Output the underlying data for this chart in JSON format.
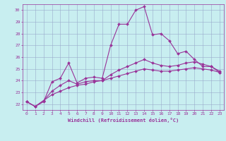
{
  "xlabel": "Windchill (Refroidissement éolien,°C)",
  "background_color": "#c8eef0",
  "line_color": "#993399",
  "grid_color": "#99aacc",
  "xlim": [
    -0.5,
    23.5
  ],
  "ylim": [
    21.5,
    30.5
  ],
  "xticks": [
    0,
    1,
    2,
    3,
    4,
    5,
    6,
    7,
    8,
    9,
    10,
    11,
    12,
    13,
    14,
    15,
    16,
    17,
    18,
    19,
    20,
    21,
    22,
    23
  ],
  "yticks": [
    22,
    23,
    24,
    25,
    26,
    27,
    28,
    29,
    30
  ],
  "line1_x": [
    0,
    1,
    2,
    3,
    4,
    5,
    6,
    7,
    8,
    9,
    10,
    11,
    12,
    13,
    14,
    15,
    16,
    17,
    18,
    19,
    20,
    21,
    22,
    23
  ],
  "line1_y": [
    22.2,
    21.8,
    22.2,
    23.9,
    24.2,
    25.5,
    23.8,
    24.2,
    24.3,
    24.2,
    27.0,
    28.8,
    28.8,
    30.0,
    30.3,
    27.9,
    28.0,
    27.4,
    26.3,
    26.5,
    25.8,
    25.2,
    25.2,
    24.7
  ],
  "line2_x": [
    0,
    1,
    2,
    3,
    4,
    5,
    6,
    7,
    8,
    9,
    10,
    11,
    12,
    13,
    14,
    15,
    16,
    17,
    18,
    19,
    20,
    21,
    22,
    23
  ],
  "line2_y": [
    22.2,
    21.8,
    22.3,
    23.1,
    23.6,
    24.0,
    23.7,
    23.9,
    24.0,
    24.0,
    24.5,
    24.9,
    25.2,
    25.5,
    25.8,
    25.5,
    25.3,
    25.2,
    25.3,
    25.5,
    25.6,
    25.4,
    25.2,
    24.8
  ],
  "line3_x": [
    0,
    1,
    2,
    3,
    4,
    5,
    6,
    7,
    8,
    9,
    10,
    11,
    12,
    13,
    14,
    15,
    16,
    17,
    18,
    19,
    20,
    21,
    22,
    23
  ],
  "line3_y": [
    22.2,
    21.8,
    22.3,
    22.8,
    23.1,
    23.4,
    23.6,
    23.7,
    23.9,
    24.0,
    24.2,
    24.4,
    24.6,
    24.8,
    25.0,
    24.9,
    24.8,
    24.8,
    24.9,
    25.0,
    25.1,
    25.0,
    24.9,
    24.7
  ]
}
